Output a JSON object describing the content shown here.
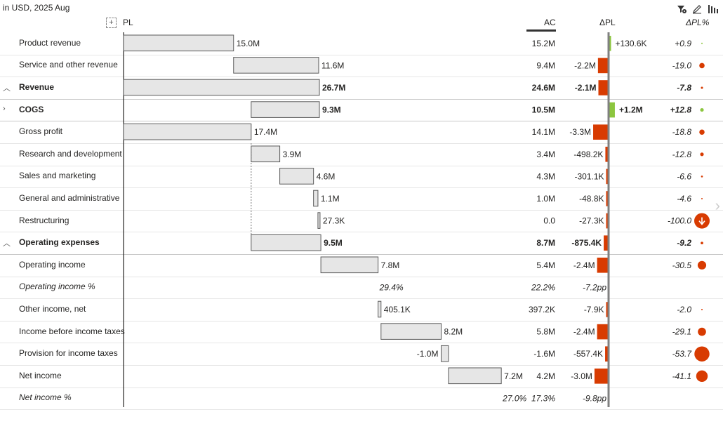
{
  "subtitle": "in USD, 2025 Aug",
  "columns": {
    "pl": "PL",
    "ac": "AC",
    "delta_pl": "ΔPL",
    "delta_pl_pct": "ΔPL%"
  },
  "plus_label": "+",
  "icons": [
    "filter-settings-icon",
    "edit-pen-icon",
    "bar-chart-icon"
  ],
  "colors": {
    "bar_fill": "#e6e6e6",
    "bar_stroke": "#5a5a5a",
    "negative": "#d83b01",
    "positive": "#8cc63f",
    "axis": "#808080"
  },
  "chart_data": {
    "type": "waterfall-table",
    "title": "PL",
    "unit": "USD",
    "period": "2025 Aug",
    "rows": [
      {
        "label": "Product revenue",
        "style": "normal",
        "pl": 15.0,
        "start": 0,
        "end": 15.0,
        "pl_label": "15.0M",
        "ac": "15.2M",
        "dpl": 130.6,
        "dpl_label": "+130.6K",
        "dplp": 0.9,
        "dplp_label": "+0.9"
      },
      {
        "label": "Service and other revenue",
        "style": "normal",
        "pl": 11.6,
        "start": 15.0,
        "end": 26.6,
        "pl_label": "11.6M",
        "ac": "9.4M",
        "dpl": -2200,
        "dpl_label": "-2.2M",
        "dplp": -19.0,
        "dplp_label": "-19.0"
      },
      {
        "label": "Revenue",
        "style": "bold",
        "chev": "^",
        "pl": 26.7,
        "start": 0,
        "end": 26.7,
        "pl_label": "26.7M",
        "ac": "24.6M",
        "dpl": -2100,
        "dpl_label": "-2.1M",
        "dplp": -7.8,
        "dplp_label": "-7.8"
      },
      {
        "label": "COGS",
        "style": "bold",
        "chev": ">",
        "pl": 9.3,
        "start": 26.7,
        "end": 17.4,
        "pl_label": "9.3M",
        "ac": "10.5M",
        "dpl": 1200,
        "dpl_label": "+1.2M",
        "dplp": 12.8,
        "dplp_label": "+12.8"
      },
      {
        "label": "Gross profit",
        "style": "normal",
        "pl": 17.4,
        "start": 17.4,
        "end": 0,
        "pl_label": "17.4M",
        "ac": "14.1M",
        "dpl": -3300,
        "dpl_label": "-3.3M",
        "dplp": -18.8,
        "dplp_label": "-18.8"
      },
      {
        "label": "Research and development",
        "style": "normal",
        "pl": 3.9,
        "start": 17.4,
        "end": 21.3,
        "pl_label": "3.9M",
        "ac": "3.4M",
        "dpl": -498.2,
        "dpl_label": "-498.2K",
        "dplp": -12.8,
        "dplp_label": "-12.8"
      },
      {
        "label": "Sales and marketing",
        "style": "normal",
        "pl": 4.6,
        "start": 21.3,
        "end": 25.9,
        "pl_label": "4.6M",
        "ac": "4.3M",
        "dpl": -301.1,
        "dpl_label": "-301.1K",
        "dplp": -6.6,
        "dplp_label": "-6.6"
      },
      {
        "label": "General and administrative",
        "style": "normal",
        "pl": 1.1,
        "start": 25.9,
        "end": 26.5,
        "pl_label": "1.1M",
        "ac": "1.0M",
        "dpl": -48.8,
        "dpl_label": "-48.8K",
        "dplp": -4.6,
        "dplp_label": "-4.6"
      },
      {
        "label": "Restructuring",
        "style": "normal",
        "pl": 0.0273,
        "start": 26.5,
        "end": 26.5,
        "pl_label": "27.3K",
        "ac": "0.0",
        "dpl": -27.3,
        "dpl_label": "-27.3K",
        "dplp": -100.0,
        "dplp_label": "-100.0"
      },
      {
        "label": "Operating expenses",
        "style": "bold",
        "chev": "^",
        "pl": 9.5,
        "start": 17.4,
        "end": 26.9,
        "pl_label": "9.5M",
        "ac": "8.7M",
        "dpl": -875.4,
        "dpl_label": "-875.4K",
        "dplp": -9.2,
        "dplp_label": "-9.2"
      },
      {
        "label": "Operating income",
        "style": "normal",
        "pl": 7.8,
        "start": 26.9,
        "end": 34.7,
        "pl_label": "7.8M",
        "ac": "5.4M",
        "dpl": -2400,
        "dpl_label": "-2.4M",
        "dplp": -30.5,
        "dplp_label": "-30.5"
      },
      {
        "label": "Operating income %",
        "style": "italic",
        "pl": null,
        "pl_label": "29.4%",
        "ac": "22.2%",
        "dpl": null,
        "dpl_label": "-7.2pp",
        "dplp": null,
        "dplp_label": ""
      },
      {
        "label": "Other income, net",
        "style": "normal",
        "pl": 0.4051,
        "start": 34.7,
        "end": 35.1,
        "pl_label": "405.1K",
        "ac": "397.2K",
        "dpl": -7.9,
        "dpl_label": "-7.9K",
        "dplp": -2.0,
        "dplp_label": "-2.0"
      },
      {
        "label": "Income before income taxes",
        "style": "normal",
        "pl": 8.2,
        "start": 35.1,
        "end": 43.3,
        "pl_label": "8.2M",
        "ac": "5.8M",
        "dpl": -2400,
        "dpl_label": "-2.4M",
        "dplp": -29.1,
        "dplp_label": "-29.1"
      },
      {
        "label": "Provision for income taxes",
        "style": "normal",
        "pl": -1.0,
        "start": 43.3,
        "end": 44.3,
        "pl_label": "-1.0M",
        "ac": "-1.6M",
        "dpl": -557.4,
        "dpl_label": "-557.4K",
        "dplp": -53.7,
        "dplp_label": "-53.7"
      },
      {
        "label": "Net income",
        "style": "normal",
        "pl": 7.2,
        "start": 44.3,
        "end": 51.5,
        "pl_label": "7.2M",
        "ac": "4.2M",
        "dpl": -3000,
        "dpl_label": "-3.0M",
        "dplp": -41.1,
        "dplp_label": "-41.1"
      },
      {
        "label": "Net income %",
        "style": "italic",
        "pl": null,
        "pl_label": "27.0%",
        "ac": "17.3%",
        "dpl": null,
        "dpl_label": "-9.8pp",
        "dplp": null,
        "dplp_label": ""
      }
    ]
  }
}
